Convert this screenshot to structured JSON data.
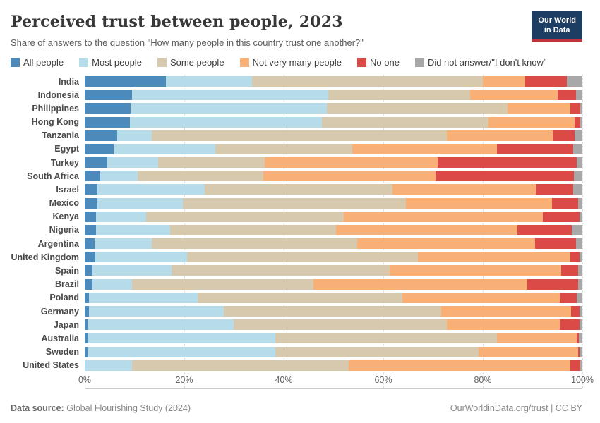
{
  "header": {
    "title": "Perceived trust between people, 2023",
    "subtitle": "Share of answers to the question \"How many people in this country trust one another?\"",
    "logo_line1": "Our World",
    "logo_line2": "in Data"
  },
  "colors": {
    "accent_navy": "#1d3d63",
    "accent_red": "#c0333e"
  },
  "chart_data": {
    "type": "bar",
    "stacked": true,
    "orientation": "horizontal",
    "title": "Perceived trust between people, 2023",
    "xlabel": "",
    "ylabel": "",
    "xlim": [
      0,
      100
    ],
    "x_tick_labels": [
      "0%",
      "20%",
      "40%",
      "60%",
      "80%",
      "100%"
    ],
    "x_tick_values": [
      0,
      20,
      40,
      60,
      80,
      100
    ],
    "grid": "vertical-dashed",
    "legend_position": "top",
    "categories": [
      "India",
      "Indonesia",
      "Philippines",
      "Hong Kong",
      "Tanzania",
      "Egypt",
      "Turkey",
      "South Africa",
      "Israel",
      "Mexico",
      "Kenya",
      "Nigeria",
      "Argentina",
      "United Kingdom",
      "Spain",
      "Brazil",
      "Poland",
      "Germany",
      "Japan",
      "Australia",
      "Sweden",
      "United States"
    ],
    "series": [
      {
        "name": "All people",
        "color": "#4C8ABB",
        "values": [
          16.3,
          9.5,
          9.2,
          9.1,
          6.5,
          5.8,
          4.5,
          3.1,
          2.5,
          2.5,
          2.3,
          2.3,
          2.0,
          2.1,
          1.5,
          1.5,
          0.8,
          0.8,
          0.5,
          0.7,
          0.5,
          0.2
        ]
      },
      {
        "name": "Most people",
        "color": "#B6DCEA",
        "values": [
          17.3,
          39.5,
          39.5,
          38.5,
          7.0,
          20.4,
          10.3,
          7.6,
          21.6,
          17.2,
          10.1,
          14.9,
          11.5,
          18.4,
          16.0,
          8.0,
          21.9,
          27.2,
          29.4,
          37.6,
          37.8,
          9.3
        ]
      },
      {
        "name": "Some people",
        "color": "#D6C9AD",
        "values": [
          46.4,
          28.5,
          36.3,
          33.6,
          59.2,
          27.5,
          21.4,
          25.2,
          37.7,
          44.8,
          39.6,
          33.3,
          41.3,
          46.5,
          43.8,
          36.4,
          41.1,
          43.7,
          42.9,
          44.5,
          40.8,
          43.5
        ]
      },
      {
        "name": "Not very many people",
        "color": "#F9B077",
        "values": [
          8.5,
          17.5,
          12.6,
          17.3,
          21.4,
          29.2,
          34.7,
          34.6,
          28.9,
          29.4,
          40.1,
          36.5,
          35.7,
          30.6,
          34.5,
          43.0,
          31.7,
          26.0,
          22.7,
          16.1,
          20.0,
          44.6
        ]
      },
      {
        "name": "No one",
        "color": "#DB4A47",
        "values": [
          8.4,
          3.7,
          2.0,
          1.1,
          4.3,
          15.2,
          27.9,
          27.8,
          7.4,
          5.2,
          7.4,
          10.9,
          8.3,
          1.9,
          3.4,
          10.3,
          3.3,
          1.8,
          3.9,
          0.4,
          0.4,
          2.0
        ]
      },
      {
        "name": "Did not answer/\"I don't know\"",
        "color": "#A8A8A8",
        "values": [
          3.1,
          1.3,
          0.4,
          0.4,
          1.6,
          1.9,
          1.2,
          1.7,
          1.9,
          0.9,
          0.5,
          2.1,
          1.2,
          0.5,
          0.8,
          0.8,
          1.2,
          0.5,
          0.6,
          0.7,
          0.5,
          0.4
        ]
      }
    ]
  },
  "footer": {
    "source_label": "Data source:",
    "source_name": "Global Flourishing Study (2024)",
    "credit": "OurWorldinData.org/trust | CC BY"
  }
}
